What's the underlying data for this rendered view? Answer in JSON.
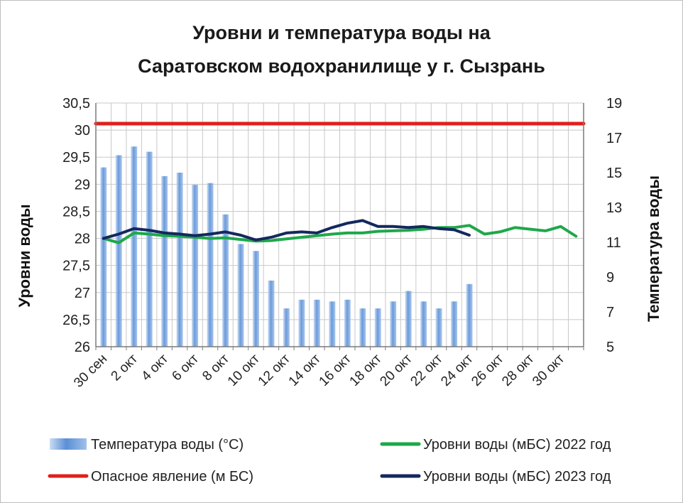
{
  "chart_data": {
    "type": "bar+line",
    "title_line1": "Уровни и температура  воды на",
    "title_line2": "Саратовском водохранилище у  г. Сызрань",
    "y_left_label": "Уровни воды",
    "y_right_label": "Температура воды",
    "y_left_ticks": [
      "30,5",
      "30",
      "29,5",
      "29",
      "28,5",
      "28",
      "27,5",
      "27",
      "26,5",
      "26"
    ],
    "y_left_lim": [
      26,
      30.5
    ],
    "y_right_ticks": [
      "19",
      "17",
      "15",
      "13",
      "11",
      "9",
      "7",
      "5"
    ],
    "y_right_lim": [
      5,
      19
    ],
    "x_ticks": [
      "30 сен",
      "2 окт",
      "4 окт",
      "6 окт",
      "8 окт",
      "10 окт",
      "12 окт",
      "14 окт",
      "16 окт",
      "18 окт",
      "20 окт",
      "22 окт",
      "24 окт",
      "26 окт",
      "28 окт",
      "30 окт"
    ],
    "x_days_count": 32,
    "grid": true,
    "series": [
      {
        "name": "Температура воды (°С)",
        "type": "bar",
        "axis": "right",
        "color": "#5b8fd6",
        "values": [
          15.3,
          16.0,
          16.5,
          16.2,
          14.8,
          15.0,
          14.3,
          14.4,
          12.6,
          10.9,
          10.5,
          8.8,
          7.2,
          7.7,
          7.7,
          7.6,
          7.7,
          7.2,
          7.2,
          7.6,
          8.2,
          7.6,
          7.2,
          7.6,
          8.6
        ]
      },
      {
        "name": "Опасное явление    (м БС)",
        "type": "line",
        "axis": "left",
        "color": "#e0201c",
        "values": [
          30.12,
          30.12,
          30.12,
          30.12,
          30.12,
          30.12,
          30.12,
          30.12,
          30.12,
          30.12,
          30.12,
          30.12,
          30.12,
          30.12,
          30.12,
          30.12,
          30.12,
          30.12,
          30.12,
          30.12,
          30.12,
          30.12,
          30.12,
          30.12,
          30.12,
          30.12,
          30.12,
          30.12,
          30.12,
          30.12,
          30.12,
          30.12
        ]
      },
      {
        "name": "Уровни воды (мБС) 2022 год",
        "type": "line",
        "axis": "left",
        "color": "#1ea84a",
        "values": [
          28.0,
          27.92,
          28.1,
          28.08,
          28.05,
          28.04,
          28.02,
          28.0,
          28.01,
          27.98,
          27.95,
          27.96,
          27.99,
          28.02,
          28.05,
          28.08,
          28.1,
          28.1,
          28.13,
          28.14,
          28.15,
          28.17,
          28.2,
          28.2,
          28.24,
          28.08,
          28.12,
          28.2,
          28.17,
          28.14,
          28.22,
          28.04
        ]
      },
      {
        "name": "Уровни воды (мБС) 2023 год",
        "type": "line",
        "axis": "left",
        "color": "#14285e",
        "values": [
          28.0,
          28.08,
          28.18,
          28.15,
          28.1,
          28.08,
          28.05,
          28.08,
          28.12,
          28.06,
          27.97,
          28.02,
          28.1,
          28.12,
          28.1,
          28.2,
          28.28,
          28.33,
          28.22,
          28.22,
          28.2,
          28.22,
          28.18,
          28.16,
          28.06
        ]
      }
    ],
    "legend": {
      "placement": "bottom",
      "items": [
        {
          "label": "Температура воды (°С)",
          "kind": "bar",
          "color": "#5b8fd6"
        },
        {
          "label": "Уровни воды (мБС) 2022 год",
          "kind": "line",
          "color": "#1ea84a"
        },
        {
          "label": "Опасное явление    (м БС)",
          "kind": "line",
          "color": "#e0201c"
        },
        {
          "label": "Уровни воды (мБС) 2023 год",
          "kind": "line",
          "color": "#14285e"
        }
      ]
    }
  }
}
